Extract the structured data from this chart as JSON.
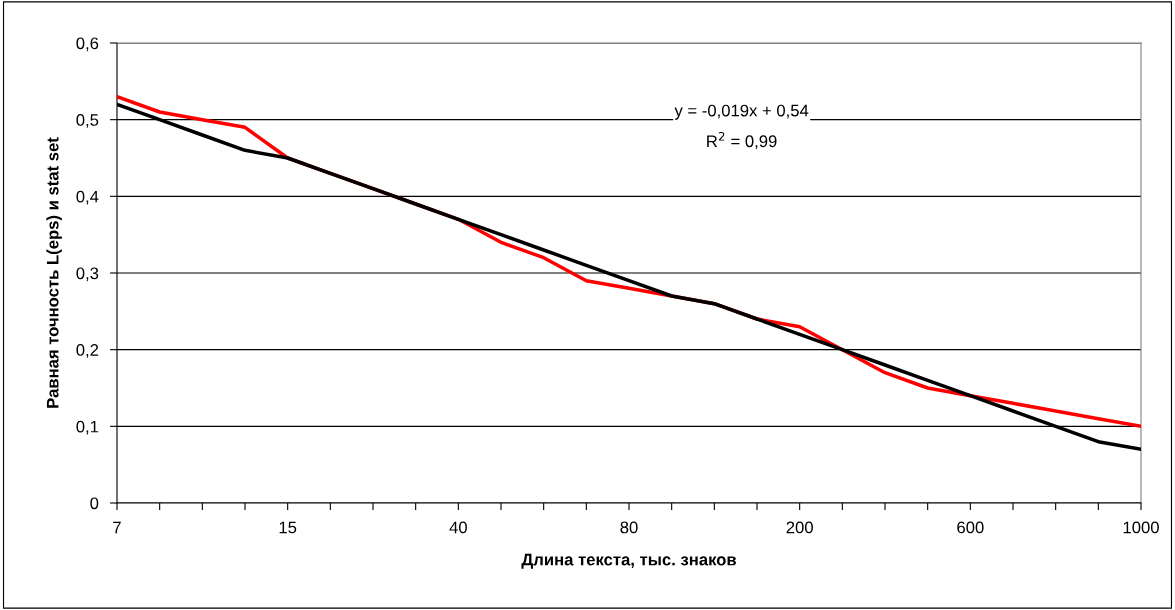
{
  "chart_data": {
    "type": "line",
    "ylabel": "Равная точность L(eps) и stat set",
    "xlabel": "Длина текста, тыс. знаков",
    "categories": [
      "7",
      null,
      null,
      null,
      "15",
      null,
      null,
      null,
      "40",
      null,
      null,
      null,
      "80",
      null,
      null,
      null,
      "200",
      null,
      null,
      null,
      "600",
      null,
      null,
      null,
      "1000"
    ],
    "series": [
      {
        "color": "#ff0000",
        "values": [
          0.53,
          0.51,
          0.5,
          0.49,
          0.45,
          0.43,
          0.41,
          0.39,
          0.37,
          0.34,
          0.32,
          0.29,
          0.28,
          0.27,
          0.26,
          0.24,
          0.23,
          0.2,
          0.17,
          0.15,
          0.14,
          0.13,
          0.12,
          0.11,
          0.1
        ]
      },
      {
        "color": "#000000",
        "values": [
          0.52,
          0.5,
          0.48,
          0.46,
          0.45,
          0.43,
          0.41,
          0.39,
          0.37,
          0.35,
          0.33,
          0.31,
          0.29,
          0.27,
          0.26,
          0.24,
          0.22,
          0.2,
          0.18,
          0.16,
          0.14,
          0.12,
          0.1,
          0.08,
          0.07
        ]
      }
    ],
    "ylim": [
      0,
      0.6
    ],
    "yticks": [
      0,
      {
        "value": 0.1,
        "label": "0,1"
      },
      {
        "value": 0.2,
        "label": "0,2"
      },
      {
        "value": 0.3,
        "label": "0,3"
      },
      {
        "value": 0.4,
        "label": "0,4"
      },
      {
        "value": 0.5,
        "label": "0,5"
      },
      {
        "value": 0.6,
        "label": "0,6"
      }
    ],
    "grid": "y",
    "marker": "none",
    "line_style": "solid",
    "annotations": [
      "y = -0,019x + 0,54",
      "R$^{2}$ = 0,99"
    ]
  }
}
